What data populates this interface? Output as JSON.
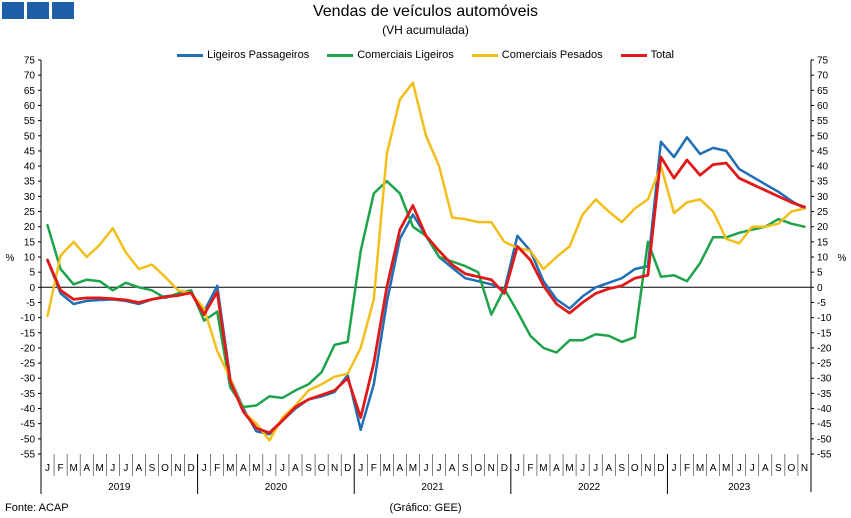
{
  "header": {
    "title": "Vendas de veículos automóveis",
    "subtitle": "(VH acumulada)"
  },
  "footer": {
    "source": "Fonte: ACAP",
    "credit": "(Gráfico: GEE)"
  },
  "colors": {
    "logo": "#1f5fa8"
  },
  "chart_data": {
    "type": "line",
    "title": "Vendas de veículos automóveis",
    "subtitle": "(VH acumulada)",
    "ylabel": "%",
    "ylabel_right": "%",
    "ylim": [
      -55,
      75
    ],
    "yticks": [
      75,
      70,
      65,
      60,
      55,
      50,
      45,
      40,
      35,
      30,
      25,
      20,
      15,
      10,
      5,
      0,
      -5,
      -10,
      -15,
      -20,
      -25,
      -30,
      -35,
      -40,
      -45,
      -50,
      -55
    ],
    "grid": false,
    "legend_position": "top",
    "month_labels": [
      "J",
      "F",
      "M",
      "A",
      "M",
      "J",
      "J",
      "A",
      "S",
      "O",
      "N",
      "D"
    ],
    "years": [
      "2019",
      "2020",
      "2021",
      "2022",
      "2023"
    ],
    "series": [
      {
        "name": "Ligeiros Passageiros",
        "color": "#1f6fb5",
        "values": [
          9,
          -2,
          -5.5,
          -4.5,
          -4.2,
          -4,
          -4.5,
          -5.5,
          -4,
          -3,
          -2.5,
          -1.5,
          -8,
          0.5,
          -30,
          -40,
          -47.5,
          -48.5,
          -44,
          -40,
          -37,
          -36,
          -34.5,
          -29,
          -47,
          -32,
          -5,
          16,
          24,
          17,
          10,
          6.5,
          3,
          2,
          1,
          -1,
          17,
          12,
          2,
          -4,
          -7,
          -3,
          0,
          1.5,
          3,
          6,
          7,
          48,
          43,
          49.5,
          44,
          46,
          45,
          39,
          36.5,
          34,
          31.5,
          28.5,
          26
        ]
      },
      {
        "name": "Comerciais Ligeiros",
        "color": "#1ea34a",
        "values": [
          20.5,
          6,
          1,
          2.5,
          2,
          -1,
          1.5,
          0,
          -1,
          -3.5,
          -2,
          -1,
          -11,
          -8,
          -33,
          -39.5,
          -39,
          -36,
          -36.5,
          -34,
          -32,
          -28,
          -19,
          -18,
          12,
          31,
          35,
          31,
          20,
          17,
          10,
          8.5,
          7,
          5,
          -9,
          -0.5,
          -8,
          -16,
          -20,
          -21.5,
          -17.5,
          -17.5,
          -15.5,
          -16,
          -18,
          -16.5,
          15,
          3.5,
          4,
          2,
          8,
          16.5,
          16.5,
          18,
          19,
          20,
          22.5,
          21,
          20
        ]
      },
      {
        "name": "Comerciais Pesados",
        "color": "#f2be1a",
        "values": [
          -9.5,
          10.5,
          15,
          10,
          14,
          19.5,
          11.5,
          6,
          7.5,
          3.5,
          -1,
          -2,
          -7,
          -21,
          -30,
          -41,
          -45,
          -50.5,
          -43,
          -39,
          -34,
          -32,
          -29.5,
          -28.5,
          -20,
          -4,
          44,
          62,
          67.5,
          50,
          40,
          23,
          22.5,
          21.5,
          21.5,
          15,
          13,
          12,
          6,
          10,
          13.5,
          24,
          29,
          25,
          21.5,
          26,
          29,
          40,
          24.5,
          28,
          29,
          25,
          16,
          14.5,
          20,
          20,
          21,
          25,
          26
        ]
      },
      {
        "name": "Total",
        "color": "#e01a1a",
        "values": [
          9,
          -1,
          -4,
          -3.5,
          -3.5,
          -3.8,
          -4.2,
          -5,
          -4,
          -3.2,
          -2.7,
          -1.8,
          -9,
          -1.5,
          -31,
          -41,
          -46.5,
          -48,
          -44,
          -39.5,
          -37,
          -35.5,
          -34,
          -30,
          -43,
          -25,
          0,
          19,
          27,
          17,
          12,
          7.5,
          4.5,
          3.5,
          2.5,
          -2,
          13.5,
          9,
          0.5,
          -5.5,
          -8.5,
          -5,
          -2,
          -0.5,
          0.5,
          3,
          4,
          43,
          36,
          42,
          37,
          40.5,
          41,
          36,
          34,
          32,
          30,
          28,
          26.5
        ]
      }
    ]
  }
}
